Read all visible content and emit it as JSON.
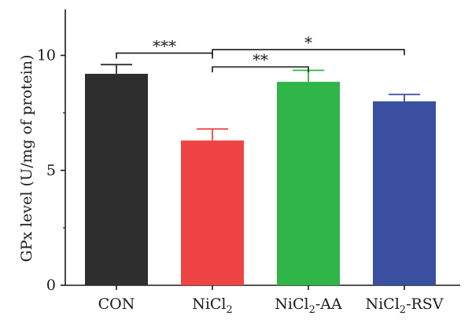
{
  "chart_data": {
    "type": "bar",
    "ylabel": "GPx level (U/mg of protein)",
    "ylim": [
      0,
      12
    ],
    "yticks": [
      0,
      5,
      10
    ],
    "grid": false,
    "categories": [
      {
        "label": "CON",
        "base": "CON",
        "sub": "",
        "suffix": ""
      },
      {
        "label": "NiCl2",
        "base": "NiCl",
        "sub": "2",
        "suffix": ""
      },
      {
        "label": "NiCl2-AA",
        "base": "NiCl",
        "sub": "2",
        "suffix": "-AA"
      },
      {
        "label": "NiCl2-RSV",
        "base": "NiCl",
        "sub": "2",
        "suffix": "-RSV"
      }
    ],
    "values": [
      9.2,
      6.3,
      8.85,
      8.0
    ],
    "errors": [
      0.4,
      0.5,
      0.5,
      0.3
    ],
    "colors": [
      "#2e2e2e",
      "#ef4444",
      "#2fb548",
      "#3a4fa0"
    ],
    "significance": [
      {
        "from": 0,
        "to": 1,
        "label": "***",
        "y": 10.1
      },
      {
        "from": 1,
        "to": 2,
        "label": "**",
        "y": 9.5
      },
      {
        "from": 1,
        "to": 3,
        "label": "*",
        "y": 10.25
      }
    ]
  }
}
